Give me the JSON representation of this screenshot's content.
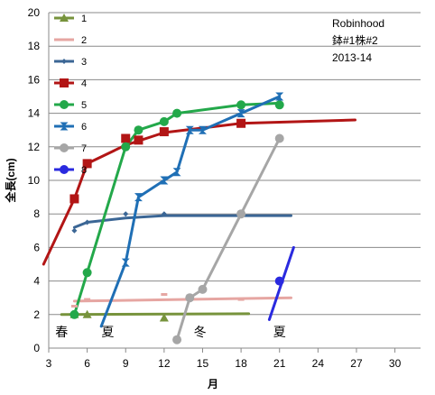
{
  "chart_data": {
    "type": "line",
    "xlabel": "月",
    "ylabel": "全長(cm)",
    "xlim": [
      3,
      32
    ],
    "ylim": [
      0,
      20
    ],
    "x_ticks": [
      3,
      6,
      9,
      12,
      15,
      18,
      21,
      24,
      27,
      30
    ],
    "y_ticks": [
      0,
      2,
      4,
      6,
      8,
      10,
      12,
      14,
      16,
      18,
      20
    ],
    "grid": "horizontal",
    "legend_position": "top-left",
    "annotation_lines": [
      "Robinhood",
      "鉢#1株#2",
      "2013-14"
    ],
    "seasons": [
      {
        "label": "春",
        "x": 4,
        "y": 0.7
      },
      {
        "label": "夏",
        "x": 7.6,
        "y": 0.7
      },
      {
        "label": "冬",
        "x": 14.8,
        "y": 0.7
      },
      {
        "label": "夏",
        "x": 21,
        "y": 0.7
      }
    ],
    "series": [
      {
        "name": "1",
        "color": "#77933c",
        "marker": "triangle",
        "points": [
          [
            5,
            2
          ],
          [
            6,
            2
          ],
          [
            12,
            1.8
          ]
        ],
        "trend": [
          [
            4,
            2
          ],
          [
            18.6,
            2.05
          ]
        ]
      },
      {
        "name": "2",
        "color": "#e6a6a2",
        "marker": "dash",
        "points": [
          [
            5,
            2.5
          ],
          [
            6,
            2.9
          ],
          [
            12,
            3.2
          ],
          [
            18,
            2.9
          ]
        ],
        "trend": [
          [
            5,
            2.8
          ],
          [
            21.9,
            3
          ]
        ]
      },
      {
        "name": "3",
        "color": "#3b6695",
        "marker": "diamond",
        "points": [
          [
            5,
            7
          ],
          [
            6,
            7.5
          ],
          [
            9,
            8
          ],
          [
            12,
            8
          ]
        ],
        "trend": [
          [
            5,
            7.2
          ],
          [
            6,
            7.5
          ],
          [
            9,
            7.75
          ],
          [
            12,
            7.9
          ],
          [
            21.9,
            7.9
          ]
        ]
      },
      {
        "name": "4",
        "color": "#b21515",
        "marker": "square",
        "points": [
          [
            5,
            8.9
          ],
          [
            6,
            11
          ],
          [
            9,
            12.5
          ],
          [
            10,
            12.4
          ],
          [
            12,
            12.9
          ],
          [
            18,
            13.4
          ]
        ],
        "trend": [
          [
            2.6,
            5
          ],
          [
            5,
            8.9
          ],
          [
            6,
            11
          ],
          [
            9,
            12.1
          ],
          [
            12,
            12.85
          ],
          [
            18,
            13.4
          ],
          [
            26.9,
            13.6
          ]
        ]
      },
      {
        "name": "5",
        "color": "#23a84a",
        "marker": "circle",
        "points": [
          [
            5,
            2
          ],
          [
            6,
            4.5
          ],
          [
            9,
            12
          ],
          [
            10,
            13
          ],
          [
            12,
            13.5
          ],
          [
            13,
            14
          ],
          [
            18,
            14.5
          ],
          [
            21,
            14.5
          ]
        ],
        "trend": [
          [
            5,
            2
          ],
          [
            6,
            4.5
          ],
          [
            9,
            12
          ],
          [
            10,
            13
          ],
          [
            12,
            13.5
          ],
          [
            13,
            14
          ],
          [
            18,
            14.5
          ],
          [
            21,
            14.6
          ]
        ]
      },
      {
        "name": "6",
        "color": "#1f6fb5",
        "marker": "hourglass",
        "points": [
          [
            9,
            5.1
          ],
          [
            10,
            9
          ],
          [
            12,
            10
          ],
          [
            13,
            10.5
          ],
          [
            14,
            13
          ],
          [
            15,
            13
          ],
          [
            18,
            14
          ],
          [
            21,
            15
          ]
        ],
        "trend": [
          [
            7.1,
            1.3
          ],
          [
            9,
            5.1
          ],
          [
            10,
            9
          ],
          [
            12,
            10
          ],
          [
            13,
            10.5
          ],
          [
            14,
            13
          ],
          [
            15,
            13
          ],
          [
            18,
            14
          ],
          [
            21,
            15
          ]
        ]
      },
      {
        "name": "7",
        "color": "#a6a6a6",
        "marker": "circle",
        "points": [
          [
            13,
            0.5
          ],
          [
            14,
            3
          ],
          [
            15,
            3.5
          ],
          [
            18,
            8
          ],
          [
            21,
            12.5
          ]
        ],
        "trend": [
          [
            13,
            0.5
          ],
          [
            14,
            3
          ],
          [
            15,
            3.5
          ],
          [
            18,
            8
          ],
          [
            21,
            12.5
          ]
        ]
      },
      {
        "name": "8",
        "color": "#2a2adf",
        "marker": "circle",
        "points": [
          [
            21,
            4
          ]
        ],
        "trend": [
          [
            20.2,
            1.7
          ],
          [
            22.1,
            6
          ]
        ]
      }
    ]
  }
}
